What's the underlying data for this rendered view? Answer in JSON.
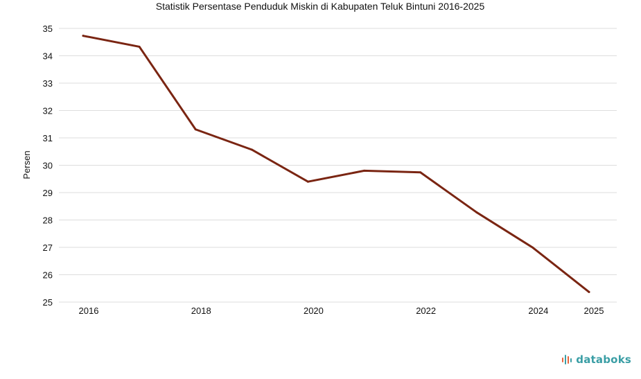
{
  "chart_data": {
    "type": "line",
    "title": "Statistik Persentase Penduduk Miskin di Kabupaten Teluk Bintuni 2016-2025",
    "xlabel": "",
    "ylabel": "Persen",
    "x": [
      2016,
      2017,
      2018,
      2019,
      2020,
      2021,
      2022,
      2023,
      2024,
      2025
    ],
    "x_tick_labels": [
      "2016",
      "2018",
      "2020",
      "2022",
      "2024",
      "2025"
    ],
    "x_tick_values": [
      2016,
      2018,
      2020,
      2022,
      2024,
      2025
    ],
    "ylim": [
      25,
      35
    ],
    "y_ticks": [
      25,
      26,
      27,
      28,
      29,
      30,
      31,
      32,
      33,
      34,
      35
    ],
    "series": [
      {
        "name": "Persentase Penduduk Miskin",
        "color": "#7a2512",
        "values": [
          34.73,
          34.33,
          31.31,
          30.57,
          29.4,
          29.8,
          29.74,
          28.28,
          26.99,
          25.37
        ]
      }
    ],
    "grid": true,
    "legend": "none"
  },
  "brand": {
    "text": "databoks",
    "color": "#3a9ea5",
    "icon_color": "#e8643a",
    "icon_name": "databoks-bars-icon"
  }
}
